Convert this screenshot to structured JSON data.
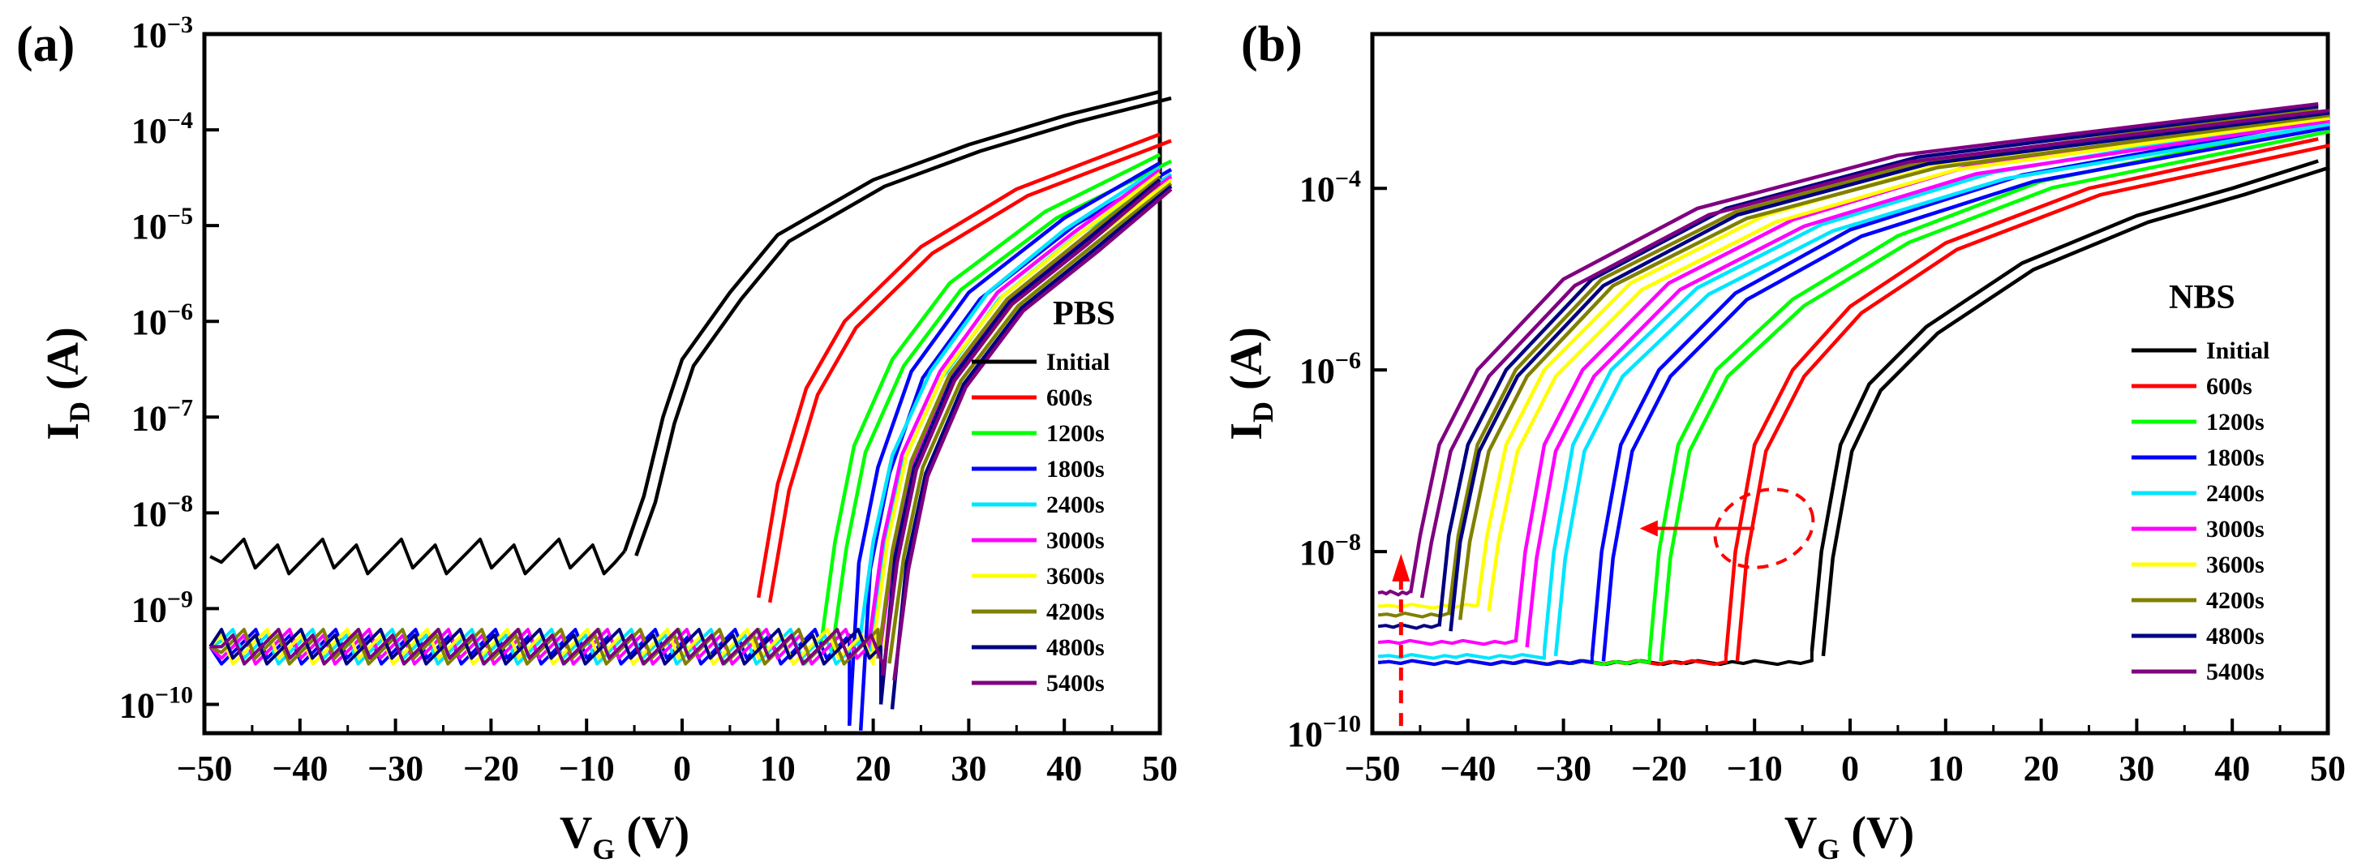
{
  "chart_data": [
    {
      "type": "line",
      "panel": "(a)",
      "xlabel": "V_G (V)",
      "ylabel": "I_D (A)",
      "xlim": [
        -50,
        50
      ],
      "ylim": [
        5e-11,
        0.001
      ],
      "yscale": "log",
      "x_ticks": [
        -50,
        -40,
        -30,
        -20,
        -10,
        0,
        10,
        20,
        30,
        40,
        50
      ],
      "y_ticks": [
        1e-10,
        1e-09,
        1e-08,
        1e-07,
        1e-06,
        1e-05,
        0.0001,
        0.001
      ],
      "grid": false,
      "legend_title": "PBS",
      "legend_position": "right",
      "series": [
        {
          "name": "Initial",
          "color": "#000000",
          "floor": 3.5e-09,
          "on_x": -7,
          "points": [
            [
              -6,
              4e-09
            ],
            [
              -4,
              1.5e-08
            ],
            [
              -2,
              1e-07
            ],
            [
              0,
              4e-07
            ],
            [
              5,
              2e-06
            ],
            [
              10,
              8e-06
            ],
            [
              20,
              3e-05
            ],
            [
              30,
              7e-05
            ],
            [
              40,
              0.00014
            ],
            [
              50,
              0.00025
            ]
          ]
        },
        {
          "name": "600s",
          "color": "#ff0000",
          "floor": null,
          "on_x": 8,
          "points": [
            [
              8,
              1.3e-09
            ],
            [
              10,
              2e-08
            ],
            [
              13,
              2e-07
            ],
            [
              17,
              1e-06
            ],
            [
              25,
              6e-06
            ],
            [
              35,
              2.4e-05
            ],
            [
              50,
              9e-05
            ]
          ]
        },
        {
          "name": "1200s",
          "color": "#00ff00",
          "floor": 4e-10,
          "on_x": 14,
          "points": [
            [
              14.5,
              4e-10
            ],
            [
              16,
              5e-09
            ],
            [
              18,
              5e-08
            ],
            [
              22,
              4e-07
            ],
            [
              28,
              2.5e-06
            ],
            [
              38,
              1.4e-05
            ],
            [
              50,
              5.5e-05
            ]
          ]
        },
        {
          "name": "1800s",
          "color": "#0000ff",
          "floor": 4e-10,
          "on_x": 17.5,
          "points": [
            [
              17.5,
              6e-11
            ],
            [
              18.5,
              3e-09
            ],
            [
              20.5,
              3e-08
            ],
            [
              24,
              3e-07
            ],
            [
              30,
              2e-06
            ],
            [
              40,
              1.2e-05
            ],
            [
              50,
              4.5e-05
            ]
          ]
        },
        {
          "name": "2400s",
          "color": "#00e5ff",
          "floor": 4e-10,
          "on_x": 18.5,
          "points": [
            [
              18.5,
              4e-10
            ],
            [
              20,
              5e-09
            ],
            [
              22,
              4e-08
            ],
            [
              26,
              3e-07
            ],
            [
              32,
              2e-06
            ],
            [
              40,
              9e-06
            ],
            [
              50,
              4e-05
            ]
          ]
        },
        {
          "name": "3000s",
          "color": "#ff00ff",
          "floor": 4e-10,
          "on_x": 19.5,
          "points": [
            [
              19.5,
              4e-10
            ],
            [
              21,
              5e-09
            ],
            [
              23,
              4e-08
            ],
            [
              27,
              3e-07
            ],
            [
              33,
              2e-06
            ],
            [
              41,
              8.5e-06
            ],
            [
              50,
              3.8e-05
            ]
          ]
        },
        {
          "name": "3600s",
          "color": "#ffff00",
          "floor": 4e-10,
          "on_x": 20,
          "points": [
            [
              20,
              4e-10
            ],
            [
              21.5,
              5e-09
            ],
            [
              23.5,
              4e-08
            ],
            [
              27.5,
              3e-07
            ],
            [
              33.5,
              1.8e-06
            ],
            [
              41.5,
              8e-06
            ],
            [
              50,
              3.5e-05
            ]
          ]
        },
        {
          "name": "4200s",
          "color": "#808000",
          "floor": 4e-10,
          "on_x": 20.5,
          "points": [
            [
              20.5,
              3e-10
            ],
            [
              22,
              4e-09
            ],
            [
              24,
              3.5e-08
            ],
            [
              28,
              2.8e-07
            ],
            [
              34,
              1.7e-06
            ],
            [
              42,
              7.5e-06
            ],
            [
              50,
              3.2e-05
            ]
          ]
        },
        {
          "name": "4800s",
          "color": "#000080",
          "floor": 4e-10,
          "on_x": 20.8,
          "points": [
            [
              20.8,
              1e-10
            ],
            [
              22.3,
              3.5e-09
            ],
            [
              24.3,
              3e-08
            ],
            [
              28.3,
              2.6e-07
            ],
            [
              34.3,
              1.6e-06
            ],
            [
              42.3,
              7e-06
            ],
            [
              50,
              3e-05
            ]
          ]
        },
        {
          "name": "5400s",
          "color": "#800080",
          "floor": 4e-10,
          "on_x": 21,
          "points": [
            [
              21,
              2e-10
            ],
            [
              22.5,
              3e-09
            ],
            [
              24.5,
              2.8e-08
            ],
            [
              28.5,
              2.4e-07
            ],
            [
              34.5,
              1.5e-06
            ],
            [
              42.5,
              6.5e-06
            ],
            [
              50,
              2.8e-05
            ]
          ]
        }
      ]
    },
    {
      "type": "line",
      "panel": "(b)",
      "xlabel": "V_G (V)",
      "ylabel": "I_D (A)",
      "xlim": [
        -50,
        50
      ],
      "ylim": [
        1e-10,
        0.005
      ],
      "yscale": "log",
      "x_ticks": [
        -50,
        -40,
        -30,
        -20,
        -10,
        0,
        10,
        20,
        30,
        40,
        50
      ],
      "y_ticks": [
        1e-10,
        1e-08,
        1e-06,
        0.0001
      ],
      "grid": false,
      "legend_title": "NBS",
      "legend_position": "right",
      "series": [
        {
          "name": "Initial",
          "color": "#000000",
          "floor": 6e-10,
          "on_x": -4,
          "points": [
            [
              -4,
              8e-10
            ],
            [
              -3,
              1e-08
            ],
            [
              -1,
              1.5e-07
            ],
            [
              2,
              7e-07
            ],
            [
              8,
              3e-06
            ],
            [
              18,
              1.5e-05
            ],
            [
              30,
              5e-05
            ],
            [
              40,
              0.0001
            ],
            [
              49,
              0.0002
            ]
          ]
        },
        {
          "name": "600s",
          "color": "#ff0000",
          "floor": 6e-10,
          "on_x": -13,
          "points": [
            [
              -13,
              7e-10
            ],
            [
              -12,
              1e-08
            ],
            [
              -10,
              1.5e-07
            ],
            [
              -6,
              1e-06
            ],
            [
              0,
              5e-06
            ],
            [
              10,
              2.5e-05
            ],
            [
              25,
              0.0001
            ],
            [
              49,
              0.00035
            ]
          ]
        },
        {
          "name": "1200s",
          "color": "#00ff00",
          "floor": 6e-10,
          "on_x": -21,
          "points": [
            [
              -21,
              7e-10
            ],
            [
              -20,
              1e-08
            ],
            [
              -18,
              1.5e-07
            ],
            [
              -14,
              1e-06
            ],
            [
              -6,
              6e-06
            ],
            [
              5,
              3e-05
            ],
            [
              20,
              0.00012
            ],
            [
              49,
              0.0005
            ]
          ]
        },
        {
          "name": "1800s",
          "color": "#0000ff",
          "floor": 6e-10,
          "on_x": -27,
          "points": [
            [
              -27,
              7e-10
            ],
            [
              -26,
              1e-08
            ],
            [
              -24,
              1.5e-07
            ],
            [
              -20,
              1e-06
            ],
            [
              -12,
              7e-06
            ],
            [
              0,
              3.5e-05
            ],
            [
              18,
              0.00014
            ],
            [
              49,
              0.00055
            ]
          ]
        },
        {
          "name": "2400s",
          "color": "#00e5ff",
          "floor": 7e-10,
          "on_x": -32,
          "points": [
            [
              -32,
              8e-10
            ],
            [
              -31,
              1e-08
            ],
            [
              -29,
              1.5e-07
            ],
            [
              -25,
              1e-06
            ],
            [
              -16,
              8e-06
            ],
            [
              -3,
              4e-05
            ],
            [
              15,
              0.00015
            ],
            [
              49,
              0.0006
            ]
          ]
        },
        {
          "name": "3000s",
          "color": "#ff00ff",
          "floor": 1e-09,
          "on_x": -35,
          "points": [
            [
              -35,
              1e-09
            ],
            [
              -34,
              1e-08
            ],
            [
              -32,
              1.5e-07
            ],
            [
              -28,
              1e-06
            ],
            [
              -19,
              9e-06
            ],
            [
              -6,
              4.5e-05
            ],
            [
              12,
              0.00017
            ],
            [
              49,
              0.00065
            ]
          ]
        },
        {
          "name": "3600s",
          "color": "#ffff00",
          "floor": 2.5e-09,
          "on_x": -39,
          "points": [
            [
              -39,
              2.5e-09
            ],
            [
              -38,
              1.5e-08
            ],
            [
              -36,
              1.5e-07
            ],
            [
              -32,
              1e-06
            ],
            [
              -23,
              9e-06
            ],
            [
              -9,
              5e-05
            ],
            [
              10,
              0.00019
            ],
            [
              49,
              0.0007
            ]
          ]
        },
        {
          "name": "4200s",
          "color": "#808000",
          "floor": 2e-09,
          "on_x": -42,
          "points": [
            [
              -42,
              2e-09
            ],
            [
              -41,
              1.5e-08
            ],
            [
              -39,
              1.5e-07
            ],
            [
              -35,
              1e-06
            ],
            [
              -26,
              1e-05
            ],
            [
              -12,
              5.5e-05
            ],
            [
              8,
              0.0002
            ],
            [
              49,
              0.00075
            ]
          ]
        },
        {
          "name": "4800s",
          "color": "#000080",
          "floor": 1.5e-09,
          "on_x": -43,
          "points": [
            [
              -43,
              1.5e-09
            ],
            [
              -42,
              1.5e-08
            ],
            [
              -40,
              1.5e-07
            ],
            [
              -36,
              1e-06
            ],
            [
              -27,
              1e-05
            ],
            [
              -13,
              6e-05
            ],
            [
              7,
              0.00022
            ],
            [
              49,
              0.0008
            ]
          ]
        },
        {
          "name": "5400s",
          "color": "#800080",
          "floor": 3.5e-09,
          "on_x": -46,
          "points": [
            [
              -46,
              3.5e-09
            ],
            [
              -45,
              1.5e-08
            ],
            [
              -43,
              1.5e-07
            ],
            [
              -39,
              1e-06
            ],
            [
              -30,
              1e-05
            ],
            [
              -16,
              6e-05
            ],
            [
              5,
              0.00023
            ],
            [
              49,
              0.00085
            ]
          ]
        }
      ],
      "annotations": [
        {
          "kind": "arrow-left",
          "color": "#ff0000",
          "from": [
            -10,
            1.8e-08
          ],
          "to": [
            -22,
            1.8e-08
          ]
        },
        {
          "kind": "dashed-ellipse",
          "color": "#ff0000",
          "center": [
            -9,
            1.8e-08
          ]
        },
        {
          "kind": "dashed-arrow-up",
          "color": "#ff0000",
          "from": [
            -47,
            1.2e-10
          ],
          "to": [
            -47,
            8e-09
          ]
        }
      ]
    }
  ]
}
